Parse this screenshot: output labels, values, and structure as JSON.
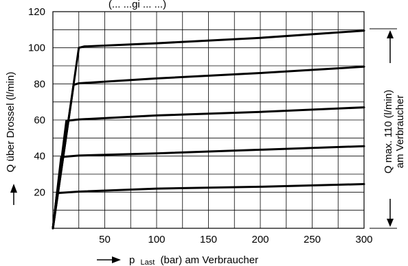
{
  "chart_data": {
    "type": "line",
    "title": "(... ...gi ... ...)",
    "xlabel": {
      "prefix": "p",
      "subscript": "Last",
      "rest": "(bar) am Verbraucher"
    },
    "ylabel": "Q über Drossel (l/min)",
    "right_annotation": {
      "line1": "Q max. 110 (l/min)",
      "line2": "am Verbraucher"
    },
    "xlim": [
      0,
      300
    ],
    "ylim": [
      0,
      120
    ],
    "x_ticks": [
      50,
      100,
      150,
      200,
      250,
      300
    ],
    "y_ticks": [
      20,
      40,
      60,
      80,
      100,
      120
    ],
    "x_grid": [
      0,
      25,
      50,
      75,
      100,
      125,
      150,
      175,
      200,
      225,
      250,
      275,
      300
    ],
    "y_grid": [
      0,
      10,
      20,
      30,
      40,
      50,
      60,
      70,
      80,
      90,
      100,
      110,
      120
    ],
    "grid": true,
    "legend": "none",
    "series": [
      {
        "values": [
          [
            0,
            0
          ],
          [
            4,
            19.5
          ],
          [
            25,
            20.3
          ],
          [
            100,
            22
          ],
          [
            200,
            23
          ],
          [
            300,
            24.5
          ]
        ]
      },
      {
        "values": [
          [
            0,
            0
          ],
          [
            8,
            39.5
          ],
          [
            25,
            40.3
          ],
          [
            100,
            41.5
          ],
          [
            200,
            43.5
          ],
          [
            300,
            45.5
          ]
        ]
      },
      {
        "values": [
          [
            0,
            0
          ],
          [
            13,
            59.5
          ],
          [
            25,
            60.3
          ],
          [
            100,
            62.5
          ],
          [
            200,
            64.5
          ],
          [
            300,
            67
          ]
        ]
      },
      {
        "values": [
          [
            0,
            0
          ],
          [
            20,
            79.5
          ],
          [
            25,
            80.3
          ],
          [
            100,
            83
          ],
          [
            200,
            86
          ],
          [
            300,
            89.5
          ]
        ]
      },
      {
        "values": [
          [
            0,
            0
          ],
          [
            25,
            100
          ],
          [
            30,
            100.7
          ],
          [
            100,
            102.5
          ],
          [
            200,
            105.5
          ],
          [
            300,
            109.5
          ]
        ]
      }
    ]
  }
}
